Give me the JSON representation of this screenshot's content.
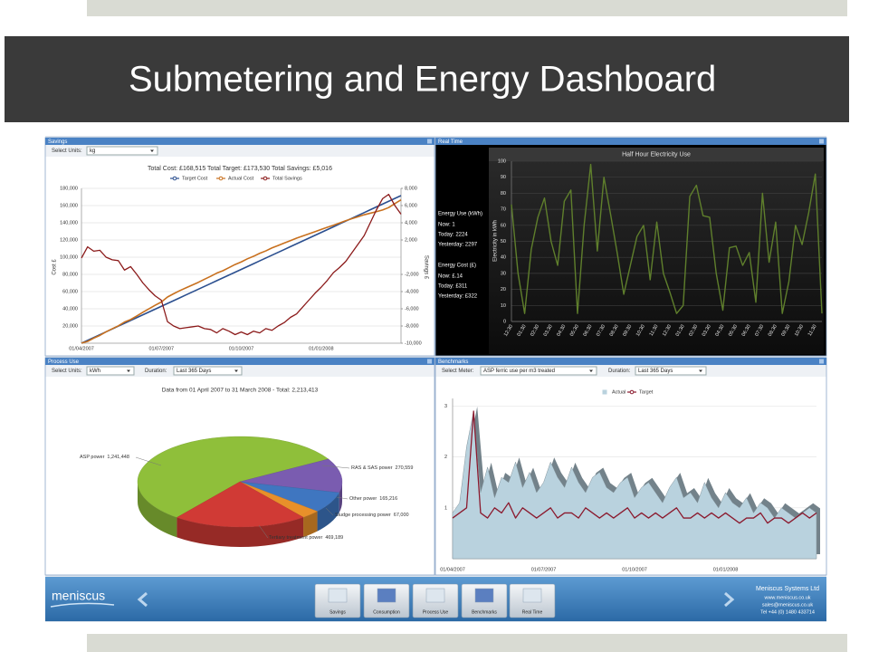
{
  "slide": {
    "title": "Submetering and Energy Dashboard"
  },
  "panels": [
    {
      "title": "Savings",
      "controls": [
        {
          "label": "Select Units:",
          "value": "kg"
        }
      ]
    },
    {
      "title": "Real Time",
      "stats": [
        "Energy Use (kWh)",
        "Now: 1",
        "Today: 2224",
        "Yesterday: 2297",
        "Energy Cost (£)",
        "Now: £.14",
        "Today: £311",
        "Yesterday: £322"
      ]
    },
    {
      "title": "Process Use",
      "controls": [
        {
          "label": "Select Units:",
          "value": "kWh"
        },
        {
          "label": "Duration:",
          "value": "Last 365 Days"
        }
      ]
    },
    {
      "title": "Benchmarks",
      "controls": [
        {
          "label": "Select Meter:",
          "value": "ASP ferric use per m3 treated"
        },
        {
          "label": "Duration:",
          "value": "Last 365 Days"
        }
      ]
    }
  ],
  "footer": {
    "logo": "meniscus",
    "buttons": [
      "Savings",
      "Consumption",
      "Process Use",
      "Benchmarks",
      "Real Time"
    ],
    "company": [
      "Meniscus Systems Ltd",
      "www.meniscus.co.uk",
      "sales@meniscus.co.uk",
      "Tel +44 (0) 1480 433714"
    ]
  },
  "chart_data": [
    {
      "type": "line",
      "title": "Total Cost: £168,515  Total Target: £173,530  Total Savings: £5,016",
      "y_label": "Cost £",
      "y2_label": "Savings £",
      "categories": [
        "01/04/2007",
        null,
        null,
        null,
        null,
        null,
        null,
        null,
        null,
        null,
        null,
        null,
        null,
        "01/07/2007",
        null,
        null,
        null,
        null,
        null,
        null,
        null,
        null,
        null,
        null,
        null,
        null,
        "01/10/2007",
        null,
        null,
        null,
        null,
        null,
        null,
        null,
        null,
        null,
        null,
        null,
        null,
        "01/01/2008",
        null,
        null,
        null,
        null,
        null,
        null,
        null,
        null,
        null,
        null,
        null,
        null,
        null
      ],
      "series": [
        {
          "name": "Target Cost",
          "color": "#2b4f8f",
          "values": [
            0,
            3300,
            6600,
            9900,
            13200,
            16500,
            19800,
            23100,
            26400,
            29700,
            33000,
            36300,
            39600,
            42900,
            46200,
            49500,
            52800,
            56100,
            59400,
            62700,
            66000,
            69300,
            72600,
            75900,
            79200,
            82500,
            85800,
            89100,
            92400,
            95700,
            99000,
            102300,
            105600,
            108900,
            112200,
            115500,
            118800,
            122100,
            125400,
            128700,
            132000,
            135300,
            138600,
            141900,
            145200,
            148500,
            151800,
            155100,
            158400,
            161700,
            165000,
            168300,
            171600
          ]
        },
        {
          "name": "Actual Cost",
          "color": "#c8701e",
          "values": [
            100,
            2100,
            5900,
            9100,
            13200,
            16800,
            20200,
            24600,
            27500,
            31700,
            36000,
            40100,
            44100,
            47900,
            53700,
            57500,
            61100,
            64300,
            67500,
            70700,
            74300,
            77700,
            81400,
            84200,
            87800,
            91500,
            94500,
            98100,
            101000,
            104500,
            107300,
            110800,
            113600,
            116500,
            119200,
            122100,
            124600,
            127100,
            129600,
            132200,
            134700,
            137100,
            139800,
            142400,
            144700,
            147000,
            149300,
            151100,
            152900,
            154900,
            157700,
            162300,
            166600
          ]
        },
        {
          "name": "Total Savings",
          "color": "#8b1a1a",
          "axis": "y2",
          "values": [
            -100,
            1200,
            700,
            800,
            0,
            -300,
            -400,
            -1500,
            -1100,
            -2000,
            -3000,
            -3800,
            -4500,
            -5000,
            -7500,
            -8000,
            -8300,
            -8200,
            -8100,
            -8000,
            -8300,
            -8400,
            -8800,
            -8300,
            -8600,
            -9000,
            -8700,
            -9000,
            -8600,
            -8800,
            -8300,
            -8500,
            -8000,
            -7600,
            -7000,
            -6600,
            -5800,
            -5000,
            -4200,
            -3500,
            -2700,
            -1800,
            -1200,
            -500,
            500,
            1500,
            2500,
            4000,
            5500,
            6800,
            7300,
            6000,
            5000
          ]
        }
      ],
      "ylim": [
        0,
        180000
      ],
      "yticks": [
        {
          "value": 20000,
          "label": "20,000"
        },
        {
          "value": 40000,
          "label": "40,000"
        },
        {
          "value": 60000,
          "label": "60,000"
        },
        {
          "value": 80000,
          "label": "80,000"
        },
        {
          "value": 100000,
          "label": "100,000"
        },
        {
          "value": 120000,
          "label": "120,000"
        },
        {
          "value": 140000,
          "label": "140,000"
        },
        {
          "value": 160000,
          "label": "160,000"
        },
        {
          "value": 180000,
          "label": "180,000"
        }
      ],
      "y2lim": [
        -10000,
        8000
      ],
      "y2ticks": [
        {
          "value": 8000,
          "label": "8,000"
        },
        {
          "value": 6000,
          "label": "6,000"
        },
        {
          "value": 4000,
          "label": "4,000"
        },
        {
          "value": 2000,
          "label": "2,000"
        },
        {
          "value": -2000,
          "label": "-2,000"
        },
        {
          "value": -4000,
          "label": "-4,000"
        },
        {
          "value": -6000,
          "label": "-6,000"
        },
        {
          "value": -8000,
          "label": "-8,000"
        },
        {
          "value": -10000,
          "label": "-10,000"
        }
      ],
      "grid": true
    },
    {
      "type": "line",
      "title": "Half Hour Electricity Use",
      "y_label": "Electricity in kWh",
      "color": "#5f7f2c",
      "categories": [
        "12:30",
        null,
        "01:30",
        null,
        "02:30",
        null,
        "03:30",
        null,
        "04:30",
        null,
        "05:30",
        null,
        "06:30",
        null,
        "07:30",
        null,
        "08:30",
        null,
        "09:30",
        null,
        "10:30",
        null,
        "11:30",
        null,
        "12:30",
        null,
        "01:30",
        null,
        "02:30",
        null,
        "03:30",
        null,
        "04:30",
        null,
        "05:30",
        null,
        "06:30",
        null,
        "07:30",
        null,
        "08:30",
        null,
        "09:30",
        null,
        "10:30",
        null,
        "11:30",
        null
      ],
      "values": [
        73,
        30,
        5,
        45,
        65,
        77,
        50,
        35,
        75,
        82,
        5,
        60,
        98,
        44,
        90,
        67,
        43,
        17,
        35,
        53,
        60,
        26,
        62,
        30,
        18,
        5,
        10,
        78,
        85,
        66,
        65,
        30,
        7,
        46,
        47,
        35,
        43,
        12,
        80,
        37,
        62,
        5,
        25,
        60,
        48,
        68,
        92,
        5
      ],
      "ylim": [
        0,
        100
      ],
      "yticks": [
        0,
        10,
        20,
        30,
        40,
        50,
        60,
        70,
        80,
        90,
        100
      ],
      "grid": true
    },
    {
      "type": "pie",
      "title": "Data from 01 April 2007 to 31 March 2008 - Total: 2,213,413",
      "categories": [
        "ASP power",
        "RAS & SAS power",
        "Other power",
        "Sludge processing power",
        "Tertiary treatment power"
      ],
      "values": [
        1241448,
        270559,
        165216,
        67000,
        469189
      ],
      "value_labels": [
        "1,241,448",
        "270,559",
        "165,216",
        "67,000",
        "469,189"
      ],
      "colors": [
        "#8fbf3a",
        "#7a5cb0",
        "#3f76c0",
        "#e8902a",
        "#d03a35"
      ]
    },
    {
      "type": "area",
      "categories": [
        "01/04/2007",
        null,
        null,
        null,
        null,
        null,
        null,
        null,
        null,
        null,
        null,
        null,
        null,
        "01/07/2007",
        null,
        null,
        null,
        null,
        null,
        null,
        null,
        null,
        null,
        null,
        null,
        null,
        "01/10/2007",
        null,
        null,
        null,
        null,
        null,
        null,
        null,
        null,
        null,
        null,
        null,
        null,
        "01/01/2008",
        null,
        null,
        null,
        null,
        null,
        null,
        null,
        null,
        null,
        null,
        null,
        null,
        null
      ],
      "series": [
        {
          "name": "Actual",
          "color": "#b9d2de",
          "mark": "area",
          "values": [
            0.9,
            1.1,
            2.2,
            2.9,
            1.3,
            1.8,
            1.2,
            1.6,
            1.5,
            1.9,
            1.4,
            1.7,
            1.3,
            1.5,
            1.9,
            1.6,
            1.4,
            1.8,
            1.5,
            1.3,
            1.6,
            1.7,
            1.4,
            1.3,
            1.5,
            1.6,
            1.2,
            1.4,
            1.5,
            1.3,
            1.1,
            1.4,
            1.6,
            1.2,
            1.3,
            1.1,
            1.5,
            1.2,
            1.0,
            1.3,
            1.1,
            1.0,
            1.2,
            0.9,
            1.1,
            1.0,
            0.8,
            1.0,
            0.9,
            0.8,
            0.9,
            1.0,
            0.9
          ]
        },
        {
          "name": "Target",
          "color": "#8b1a2e",
          "mark": "line",
          "values": [
            0.8,
            0.9,
            1.0,
            2.9,
            0.9,
            0.8,
            1.0,
            0.9,
            1.1,
            0.8,
            1.0,
            0.9,
            0.8,
            0.9,
            1.0,
            0.8,
            0.9,
            0.9,
            0.8,
            1.0,
            0.9,
            0.8,
            0.9,
            0.8,
            0.9,
            1.0,
            0.8,
            0.9,
            0.8,
            0.9,
            0.8,
            0.9,
            1.0,
            0.8,
            0.8,
            0.9,
            0.8,
            0.9,
            0.8,
            0.9,
            0.8,
            0.7,
            0.8,
            0.8,
            0.9,
            0.7,
            0.8,
            0.8,
            0.7,
            0.8,
            0.9,
            0.8,
            0.9
          ]
        }
      ],
      "ylim": [
        0,
        3.15
      ],
      "yticks": [
        1,
        2,
        3
      ],
      "grid": true
    }
  ]
}
